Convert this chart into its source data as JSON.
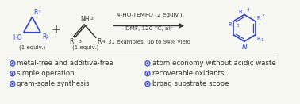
{
  "blue_color": "#3344cc",
  "black": "#333333",
  "bg": "#f7f7f2",
  "bullet_items_left": [
    "metal-free and additive-free",
    "simple operation",
    "gram-scale synthesis"
  ],
  "bullet_items_right": [
    "atom economy without acidic waste",
    "recoverable oxidants",
    "broad substrate scope"
  ],
  "reagent_line1": "4-HO-TEMPO (2 equiv.)",
  "reagent_line2": "DMF, 120 °C, air",
  "reagent_line3": "31 examples, up to 94% yield",
  "equiv1": "(1 equiv.)",
  "equiv2": "(1 equiv.)",
  "fs_main": 6.5,
  "fs_small": 5.5,
  "fs_super": 4.5,
  "fs_bullet": 6.2
}
